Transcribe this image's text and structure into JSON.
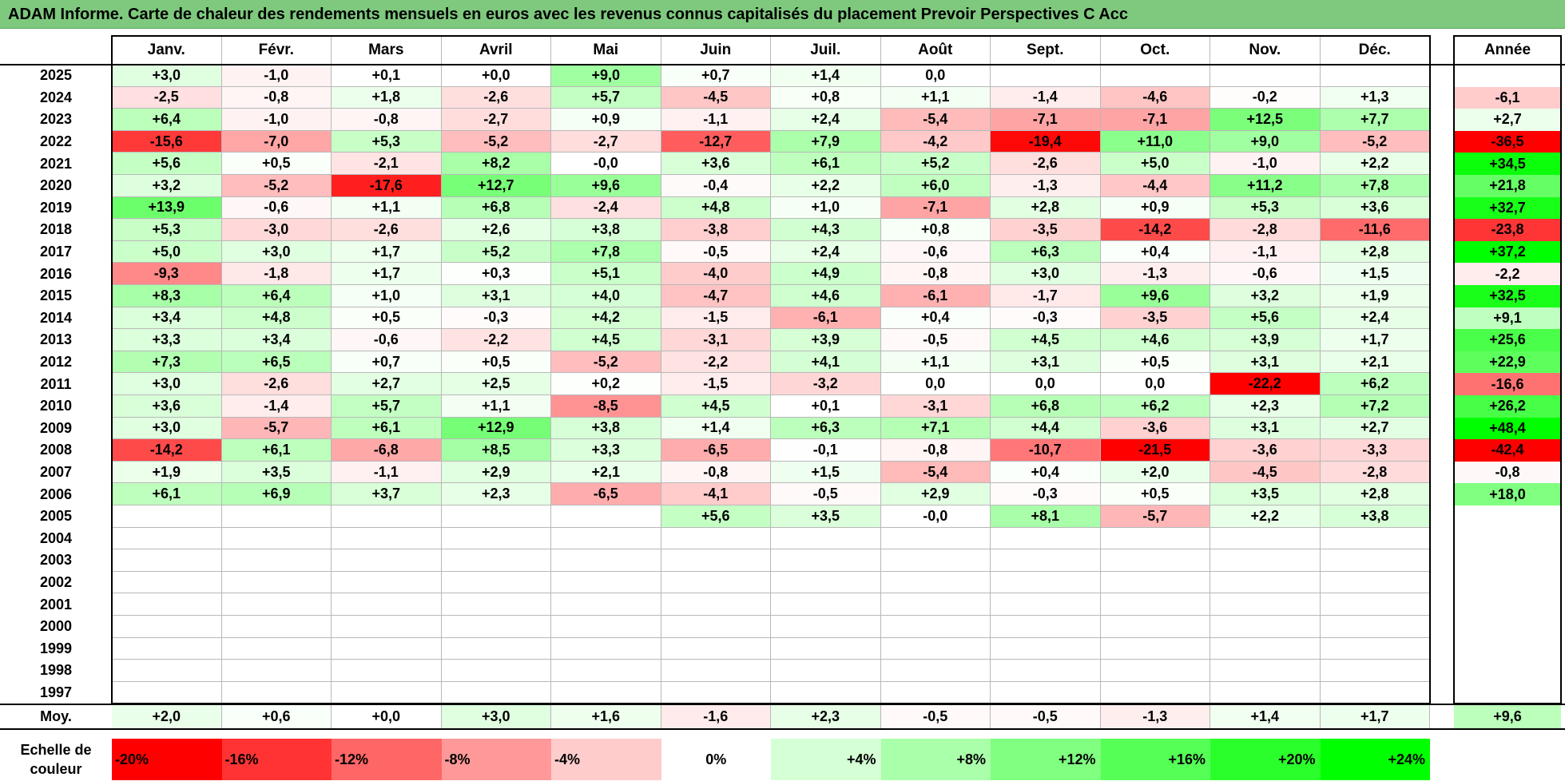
{
  "title": "ADAM Informe. Carte de chaleur des rendements mensuels en euros avec les revenus connus capitalisés du placement Prevoir Perspectives C Acc",
  "months": [
    "Janv.",
    "Févr.",
    "Mars",
    "Avril",
    "Mai",
    "Juin",
    "Juil.",
    "Août",
    "Sept.",
    "Oct.",
    "Nov.",
    "Déc."
  ],
  "annual_header": "Année",
  "average_label": "Moy.",
  "scale_label": "Echelle de couleur",
  "scale": [
    {
      "label": "-20%",
      "value": -20,
      "color": "#ff0000"
    },
    {
      "label": "-16%",
      "value": -16,
      "color": "#ff3333"
    },
    {
      "label": "-12%",
      "value": -12,
      "color": "#ff6666"
    },
    {
      "label": "-8%",
      "value": -8,
      "color": "#ff9999"
    },
    {
      "label": "-4%",
      "value": -4,
      "color": "#ffcccc"
    },
    {
      "label": "0%",
      "value": 0,
      "color": "#ffffff"
    },
    {
      "label": "+4%",
      "value": 4,
      "color": "#d5ffd5"
    },
    {
      "label": "+8%",
      "value": 8,
      "color": "#aaffaa"
    },
    {
      "label": "+12%",
      "value": 12,
      "color": "#80ff80"
    },
    {
      "label": "+16%",
      "value": 16,
      "color": "#55ff55"
    },
    {
      "label": "+20%",
      "value": 20,
      "color": "#2bff2b"
    },
    {
      "label": "+24%",
      "value": 24,
      "color": "#00ff00"
    }
  ],
  "chart_data": {
    "type": "heatmap",
    "x": [
      "Janv.",
      "Févr.",
      "Mars",
      "Avril",
      "Mai",
      "Juin",
      "Juil.",
      "Août",
      "Sept.",
      "Oct.",
      "Nov.",
      "Déc."
    ],
    "rows": [
      {
        "year": "2025",
        "months": [
          "+3,0",
          "-1,0",
          "+0,1",
          "+0,0",
          "+9,0",
          "+0,7",
          "+1,4",
          "0,0",
          "",
          "",
          "",
          ""
        ],
        "annual": ""
      },
      {
        "year": "2024",
        "months": [
          "-2,5",
          "-0,8",
          "+1,8",
          "-2,6",
          "+5,7",
          "-4,5",
          "+0,8",
          "+1,1",
          "-1,4",
          "-4,6",
          "-0,2",
          "+1,3"
        ],
        "annual": "-6,1"
      },
      {
        "year": "2023",
        "months": [
          "+6,4",
          "-1,0",
          "-0,8",
          "-2,7",
          "+0,9",
          "-1,1",
          "+2,4",
          "-5,4",
          "-7,1",
          "-7,1",
          "+12,5",
          "+7,7"
        ],
        "annual": "+2,7"
      },
      {
        "year": "2022",
        "months": [
          "-15,6",
          "-7,0",
          "+5,3",
          "-5,2",
          "-2,7",
          "-12,7",
          "+7,9",
          "-4,2",
          "-19,4",
          "+11,0",
          "+9,0",
          "-5,2"
        ],
        "annual": "-36,5"
      },
      {
        "year": "2021",
        "months": [
          "+5,6",
          "+0,5",
          "-2,1",
          "+8,2",
          "-0,0",
          "+3,6",
          "+6,1",
          "+5,2",
          "-2,6",
          "+5,0",
          "-1,0",
          "+2,2"
        ],
        "annual": "+34,5"
      },
      {
        "year": "2020",
        "months": [
          "+3,2",
          "-5,2",
          "-17,6",
          "+12,7",
          "+9,6",
          "-0,4",
          "+2,2",
          "+6,0",
          "-1,3",
          "-4,4",
          "+11,2",
          "+7,8"
        ],
        "annual": "+21,8"
      },
      {
        "year": "2019",
        "months": [
          "+13,9",
          "-0,6",
          "+1,1",
          "+6,8",
          "-2,4",
          "+4,8",
          "+1,0",
          "-7,1",
          "+2,8",
          "+0,9",
          "+5,3",
          "+3,6"
        ],
        "annual": "+32,7"
      },
      {
        "year": "2018",
        "months": [
          "+5,3",
          "-3,0",
          "-2,6",
          "+2,6",
          "+3,8",
          "-3,8",
          "+4,3",
          "+0,8",
          "-3,5",
          "-14,2",
          "-2,8",
          "-11,6"
        ],
        "annual": "-23,8"
      },
      {
        "year": "2017",
        "months": [
          "+5,0",
          "+3,0",
          "+1,7",
          "+5,2",
          "+7,8",
          "-0,5",
          "+2,4",
          "-0,6",
          "+6,3",
          "+0,4",
          "-1,1",
          "+2,8"
        ],
        "annual": "+37,2"
      },
      {
        "year": "2016",
        "months": [
          "-9,3",
          "-1,8",
          "+1,7",
          "+0,3",
          "+5,1",
          "-4,0",
          "+4,9",
          "-0,8",
          "+3,0",
          "-1,3",
          "-0,6",
          "+1,5"
        ],
        "annual": "-2,2"
      },
      {
        "year": "2015",
        "months": [
          "+8,3",
          "+6,4",
          "+1,0",
          "+3,1",
          "+4,0",
          "-4,7",
          "+4,6",
          "-6,1",
          "-1,7",
          "+9,6",
          "+3,2",
          "+1,9"
        ],
        "annual": "+32,5"
      },
      {
        "year": "2014",
        "months": [
          "+3,4",
          "+4,8",
          "+0,5",
          "-0,3",
          "+4,2",
          "-1,5",
          "-6,1",
          "+0,4",
          "-0,3",
          "-3,5",
          "+5,6",
          "+2,4"
        ],
        "annual": "+9,1"
      },
      {
        "year": "2013",
        "months": [
          "+3,3",
          "+3,4",
          "-0,6",
          "-2,2",
          "+4,5",
          "-3,1",
          "+3,9",
          "-0,5",
          "+4,5",
          "+4,6",
          "+3,9",
          "+1,7"
        ],
        "annual": "+25,6"
      },
      {
        "year": "2012",
        "months": [
          "+7,3",
          "+6,5",
          "+0,7",
          "+0,5",
          "-5,2",
          "-2,2",
          "+4,1",
          "+1,1",
          "+3,1",
          "+0,5",
          "+3,1",
          "+2,1"
        ],
        "annual": "+22,9"
      },
      {
        "year": "2011",
        "months": [
          "+3,0",
          "-2,6",
          "+2,7",
          "+2,5",
          "+0,2",
          "-1,5",
          "-3,2",
          "0,0",
          "0,0",
          "0,0",
          "-22,2",
          "+6,2"
        ],
        "annual": "-16,6"
      },
      {
        "year": "2010",
        "months": [
          "+3,6",
          "-1,4",
          "+5,7",
          "+1,1",
          "-8,5",
          "+4,5",
          "+0,1",
          "-3,1",
          "+6,8",
          "+6,2",
          "+2,3",
          "+7,2"
        ],
        "annual": "+26,2"
      },
      {
        "year": "2009",
        "months": [
          "+3,0",
          "-5,7",
          "+6,1",
          "+12,9",
          "+3,8",
          "+1,4",
          "+6,3",
          "+7,1",
          "+4,4",
          "-3,6",
          "+3,1",
          "+2,7"
        ],
        "annual": "+48,4"
      },
      {
        "year": "2008",
        "months": [
          "-14,2",
          "+6,1",
          "-6,8",
          "+8,5",
          "+3,3",
          "-6,5",
          "-0,1",
          "-0,8",
          "-10,7",
          "-21,5",
          "-3,6",
          "-3,3"
        ],
        "annual": "-42,4"
      },
      {
        "year": "2007",
        "months": [
          "+1,9",
          "+3,5",
          "-1,1",
          "+2,9",
          "+2,1",
          "-0,8",
          "+1,5",
          "-5,4",
          "+0,4",
          "+2,0",
          "-4,5",
          "-2,8"
        ],
        "annual": "-0,8"
      },
      {
        "year": "2006",
        "months": [
          "+6,1",
          "+6,9",
          "+3,7",
          "+2,3",
          "-6,5",
          "-4,1",
          "-0,5",
          "+2,9",
          "-0,3",
          "+0,5",
          "+3,5",
          "+2,8"
        ],
        "annual": "+18,0"
      },
      {
        "year": "2005",
        "months": [
          "",
          "",
          "",
          "",
          "",
          "+5,6",
          "+3,5",
          "-0,0",
          "+8,1",
          "-5,7",
          "+2,2",
          "+3,8"
        ],
        "annual": ""
      },
      {
        "year": "2004",
        "months": [
          "",
          "",
          "",
          "",
          "",
          "",
          "",
          "",
          "",
          "",
          "",
          ""
        ],
        "annual": ""
      },
      {
        "year": "2003",
        "months": [
          "",
          "",
          "",
          "",
          "",
          "",
          "",
          "",
          "",
          "",
          "",
          ""
        ],
        "annual": ""
      },
      {
        "year": "2002",
        "months": [
          "",
          "",
          "",
          "",
          "",
          "",
          "",
          "",
          "",
          "",
          "",
          ""
        ],
        "annual": ""
      },
      {
        "year": "2001",
        "months": [
          "",
          "",
          "",
          "",
          "",
          "",
          "",
          "",
          "",
          "",
          "",
          ""
        ],
        "annual": ""
      },
      {
        "year": "2000",
        "months": [
          "",
          "",
          "",
          "",
          "",
          "",
          "",
          "",
          "",
          "",
          "",
          ""
        ],
        "annual": ""
      },
      {
        "year": "1999",
        "months": [
          "",
          "",
          "",
          "",
          "",
          "",
          "",
          "",
          "",
          "",
          "",
          ""
        ],
        "annual": ""
      },
      {
        "year": "1998",
        "months": [
          "",
          "",
          "",
          "",
          "",
          "",
          "",
          "",
          "",
          "",
          "",
          ""
        ],
        "annual": ""
      },
      {
        "year": "1997",
        "months": [
          "",
          "",
          "",
          "",
          "",
          "",
          "",
          "",
          "",
          "",
          "",
          ""
        ],
        "annual": ""
      }
    ],
    "average": {
      "months": [
        "+2,0",
        "+0,6",
        "+0,0",
        "+3,0",
        "+1,6",
        "-1,6",
        "+2,3",
        "-0,5",
        "-0,5",
        "-1,3",
        "+1,4",
        "+1,7"
      ],
      "annual": "+9,6"
    }
  }
}
